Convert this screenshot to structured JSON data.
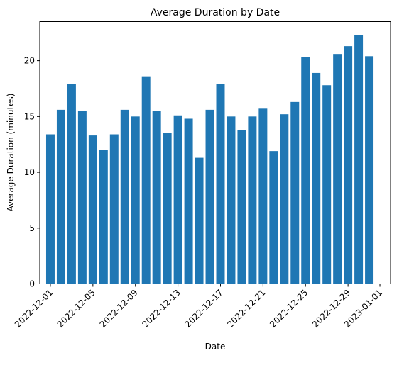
{
  "chart_data": {
    "type": "bar",
    "title": "Average Duration by Date",
    "xlabel": "Date",
    "ylabel": "Average Duration (minutes)",
    "bar_color": "#1f77b4",
    "ylim": [
      0,
      23.5
    ],
    "yticks": [
      0,
      5,
      10,
      15,
      20
    ],
    "xlim": [
      "2022-11-30",
      "2023-01-02"
    ],
    "xtick_labels": [
      "2022-12-01",
      "2022-12-05",
      "2022-12-09",
      "2022-12-13",
      "2022-12-17",
      "2022-12-21",
      "2022-12-25",
      "2022-12-29",
      "2023-01-01"
    ],
    "grid": false,
    "legend": "none",
    "categories": [
      "2022-12-01",
      "2022-12-02",
      "2022-12-03",
      "2022-12-04",
      "2022-12-05",
      "2022-12-06",
      "2022-12-07",
      "2022-12-08",
      "2022-12-09",
      "2022-12-10",
      "2022-12-11",
      "2022-12-12",
      "2022-12-13",
      "2022-12-14",
      "2022-12-15",
      "2022-12-16",
      "2022-12-17",
      "2022-12-18",
      "2022-12-19",
      "2022-12-20",
      "2022-12-21",
      "2022-12-22",
      "2022-12-23",
      "2022-12-24",
      "2022-12-25",
      "2022-12-26",
      "2022-12-27",
      "2022-12-28",
      "2022-12-29",
      "2022-12-30",
      "2022-12-31"
    ],
    "values": [
      13.4,
      15.6,
      17.9,
      15.5,
      13.3,
      12.0,
      13.4,
      15.6,
      15.0,
      18.6,
      15.5,
      13.5,
      15.1,
      14.8,
      11.3,
      15.6,
      17.9,
      15.0,
      13.8,
      15.0,
      15.7,
      11.9,
      15.2,
      16.3,
      20.3,
      18.9,
      17.8,
      20.6,
      21.3,
      22.3,
      20.4
    ]
  }
}
